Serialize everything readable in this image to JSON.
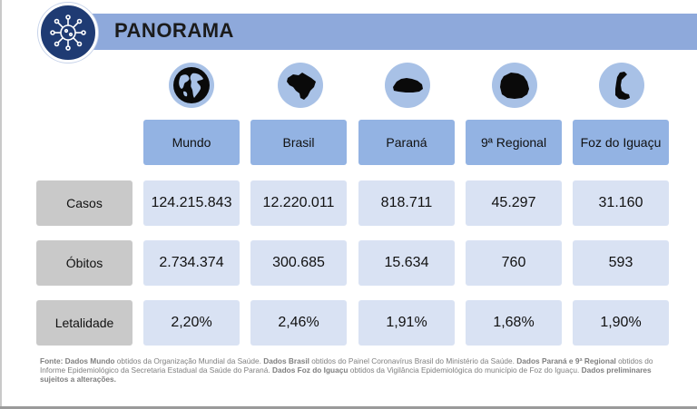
{
  "header": {
    "title": "PANORAMA",
    "logo_icon": "virus-network-icon"
  },
  "columns": [
    {
      "label": "Mundo",
      "icon": "globe-icon"
    },
    {
      "label": "Brasil",
      "icon": "brazil-map-icon"
    },
    {
      "label": "Paraná",
      "icon": "parana-map-icon"
    },
    {
      "label": "9ª Regional",
      "icon": "regional-map-icon"
    },
    {
      "label": "Foz do Iguaçu",
      "icon": "foz-map-icon"
    }
  ],
  "rows": [
    {
      "label": "Casos",
      "values": [
        "124.215.843",
        "12.220.011",
        "818.711",
        "45.297",
        "31.160"
      ]
    },
    {
      "label": "Óbitos",
      "values": [
        "2.734.374",
        "300.685",
        "15.634",
        "760",
        "593"
      ]
    },
    {
      "label": "Letalidade",
      "values": [
        "2,20%",
        "2,46%",
        "1,91%",
        "1,68%",
        "1,90%"
      ]
    }
  ],
  "footnote": {
    "p1": "Fonte: Dados Mundo",
    "p2": " obtidos da Organização Mundial da Saúde. ",
    "p3": "Dados Brasil",
    "p4": " obtidos do Painel Coronavírus Brasil do Ministério da Saúde. ",
    "p5": "Dados Paraná e 9ª Regional",
    "p6": " obtidos do Informe Epidemiológico da Secretaria Estadual da Saúde do Paraná. ",
    "p7": "Dados Foz do Iguaçu",
    "p8": " obtidos da Vigilância Epidemiológica do município de Foz do Iguaçu. ",
    "p9": "Dados preliminares sujeitos a alterações."
  },
  "colors": {
    "header_bar": "#8ea9db",
    "logo_bg": "#1f3b73",
    "column_header": "#93b3e3",
    "row_header": "#c9c9c9",
    "cell": "#d9e2f3"
  }
}
